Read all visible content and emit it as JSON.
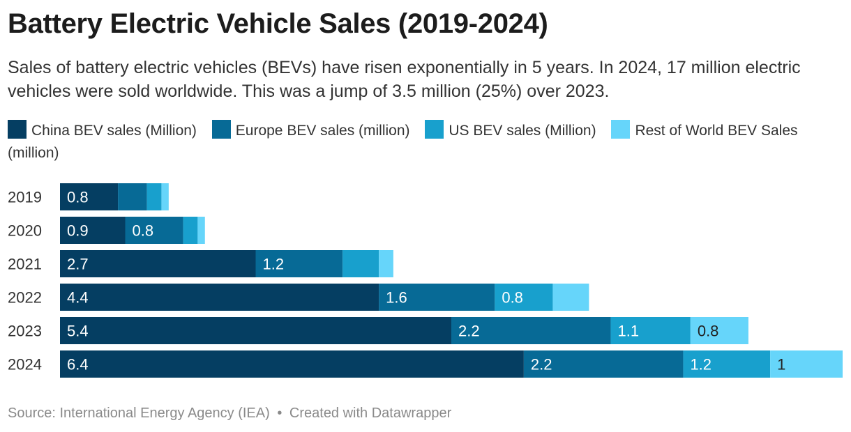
{
  "title": "Battery Electric Vehicle Sales (2019-2024)",
  "subtitle": "Sales of battery electric vehicles (BEVs) have risen exponentially in 5 years. In 2024, 17 million electric vehicles were sold worldwide. This was a jump of 3.5 million (25%) over 2023.",
  "footer": {
    "source": "Source: International Energy Agency (IEA)",
    "separator": "•",
    "credit": "Created with Datawrapper"
  },
  "chart_data": {
    "type": "bar",
    "orientation": "horizontal",
    "stacked": true,
    "categories": [
      "2019",
      "2020",
      "2021",
      "2022",
      "2023",
      "2024"
    ],
    "series": [
      {
        "name": "China BEV sales (Million)",
        "color": "#053e62",
        "values": [
          0.8,
          0.9,
          2.7,
          4.4,
          5.4,
          6.4
        ],
        "labels": [
          "0.8",
          "0.9",
          "2.7",
          "4.4",
          "5.4",
          "6.4"
        ]
      },
      {
        "name": "Europe BEV sales (million)",
        "color": "#076a96",
        "values": [
          0.4,
          0.8,
          1.2,
          1.6,
          2.2,
          2.2
        ],
        "labels": [
          "",
          "0.8",
          "1.2",
          "1.6",
          "2.2",
          "2.2"
        ]
      },
      {
        "name": "US BEV sales (Million)",
        "color": "#18a0cd",
        "values": [
          0.2,
          0.2,
          0.5,
          0.8,
          1.1,
          1.2
        ],
        "labels": [
          "",
          "",
          "",
          "0.8",
          "1.1",
          "1.2"
        ]
      },
      {
        "name": "Rest of World BEV Sales (million)",
        "color": "#66d5fa",
        "values": [
          0.1,
          0.1,
          0.2,
          0.5,
          0.8,
          1.0
        ],
        "labels": [
          "",
          "",
          "",
          "",
          "0.8",
          "1"
        ]
      }
    ],
    "xlim": [
      0,
      10.8
    ],
    "grid": false,
    "legend_position": "top"
  }
}
